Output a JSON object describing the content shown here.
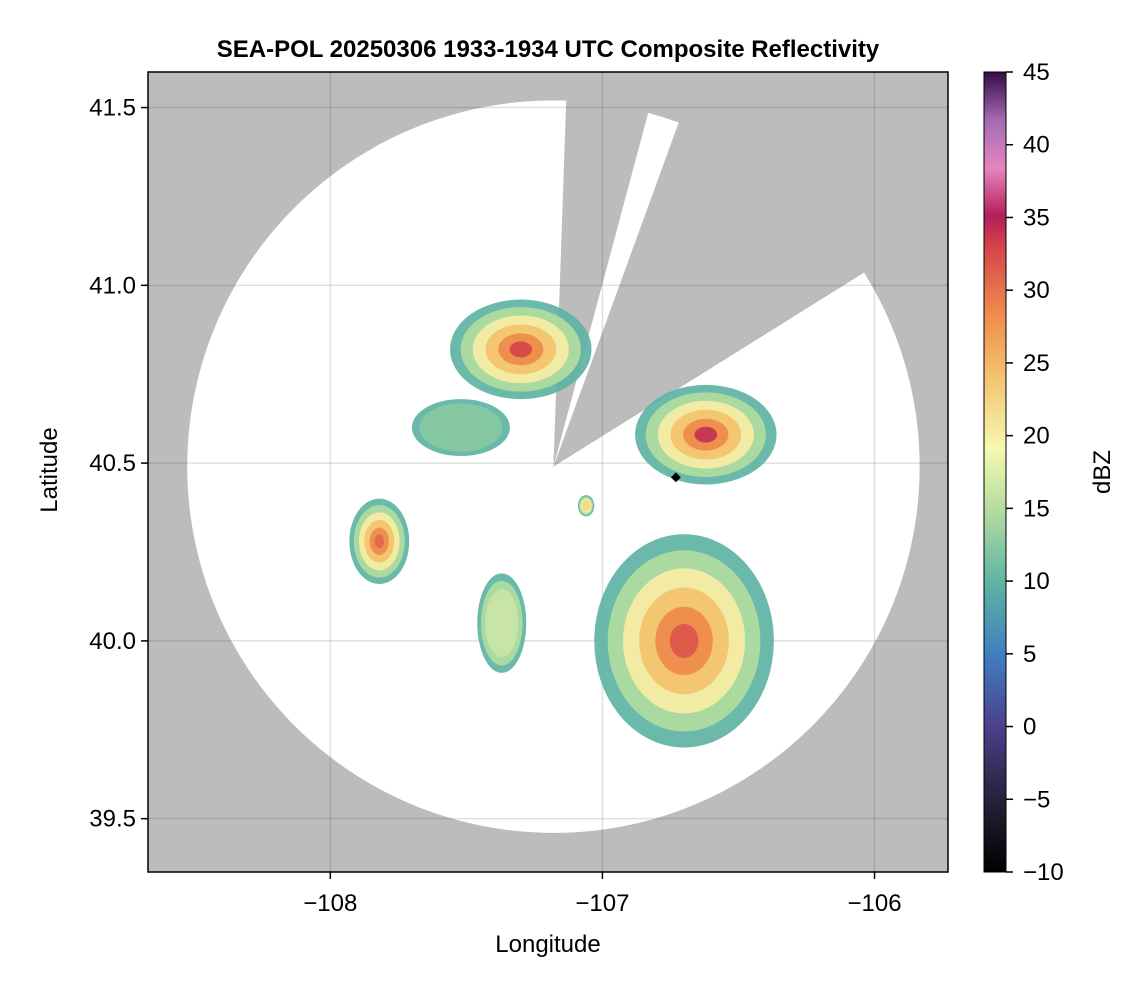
{
  "chart_data": {
    "type": "heatmap",
    "title": "SEA-POL 20250306 1933-1934 UTC Composite Reflectivity",
    "xlabel": "Longitude",
    "ylabel": "Latitude",
    "xlim": [
      -108.67,
      -105.73
    ],
    "ylim": [
      39.35,
      41.6
    ],
    "xticks": [
      -108,
      -107,
      -106
    ],
    "xtick_labels": [
      "−108",
      "−107",
      "−106"
    ],
    "yticks": [
      39.5,
      40.0,
      40.5,
      41.0,
      41.5
    ],
    "ytick_labels": [
      "39.5",
      "40.0",
      "40.5",
      "41.0",
      "41.5"
    ],
    "grid": true,
    "background_color": "#bcbcbc",
    "coverage_color": "#ffffff",
    "radar_center": {
      "lon": -107.18,
      "lat": 40.49
    },
    "radar_range_deg_lat": 1.03,
    "blocked_sector_deg": [
      [
        2,
        15
      ],
      [
        20,
        58
      ]
    ],
    "site_marker": {
      "lon": -106.73,
      "lat": 40.46
    },
    "colorbar": {
      "label": "dBZ",
      "range": [
        -10,
        45
      ],
      "ticks": [
        -10,
        -5,
        0,
        5,
        10,
        15,
        20,
        25,
        30,
        35,
        40,
        45
      ],
      "tick_labels": [
        "−10",
        "−5",
        "0",
        "5",
        "10",
        "15",
        "20",
        "25",
        "30",
        "35",
        "40",
        "45"
      ],
      "colormap": "Spectral (reversed, with purples at top)"
    },
    "echo_cells": [
      {
        "name": "north-cell",
        "lon": -107.3,
        "lat": 40.82,
        "rlon": 0.26,
        "rlat": 0.14,
        "peak_dbz": 30
      },
      {
        "name": "northeast-cell",
        "lon": -106.62,
        "lat": 40.58,
        "rlon": 0.26,
        "rlat": 0.14,
        "peak_dbz": 31
      },
      {
        "name": "west-cell",
        "lon": -107.82,
        "lat": 40.28,
        "rlon": 0.11,
        "rlat": 0.12,
        "peak_dbz": 28
      },
      {
        "name": "northwest-cell",
        "lon": -107.52,
        "lat": 40.6,
        "rlon": 0.18,
        "rlat": 0.08,
        "peak_dbz": 12
      },
      {
        "name": "southeast-complex",
        "lon": -106.7,
        "lat": 40.0,
        "rlon": 0.33,
        "rlat": 0.3,
        "peak_dbz": 29
      },
      {
        "name": "small-cell",
        "lon": -107.06,
        "lat": 40.38,
        "rlon": 0.03,
        "rlat": 0.03,
        "peak_dbz": 20
      },
      {
        "name": "stripe-cell",
        "lon": -107.37,
        "lat": 40.05,
        "rlon": 0.09,
        "rlat": 0.14,
        "peak_dbz": 15
      }
    ]
  }
}
